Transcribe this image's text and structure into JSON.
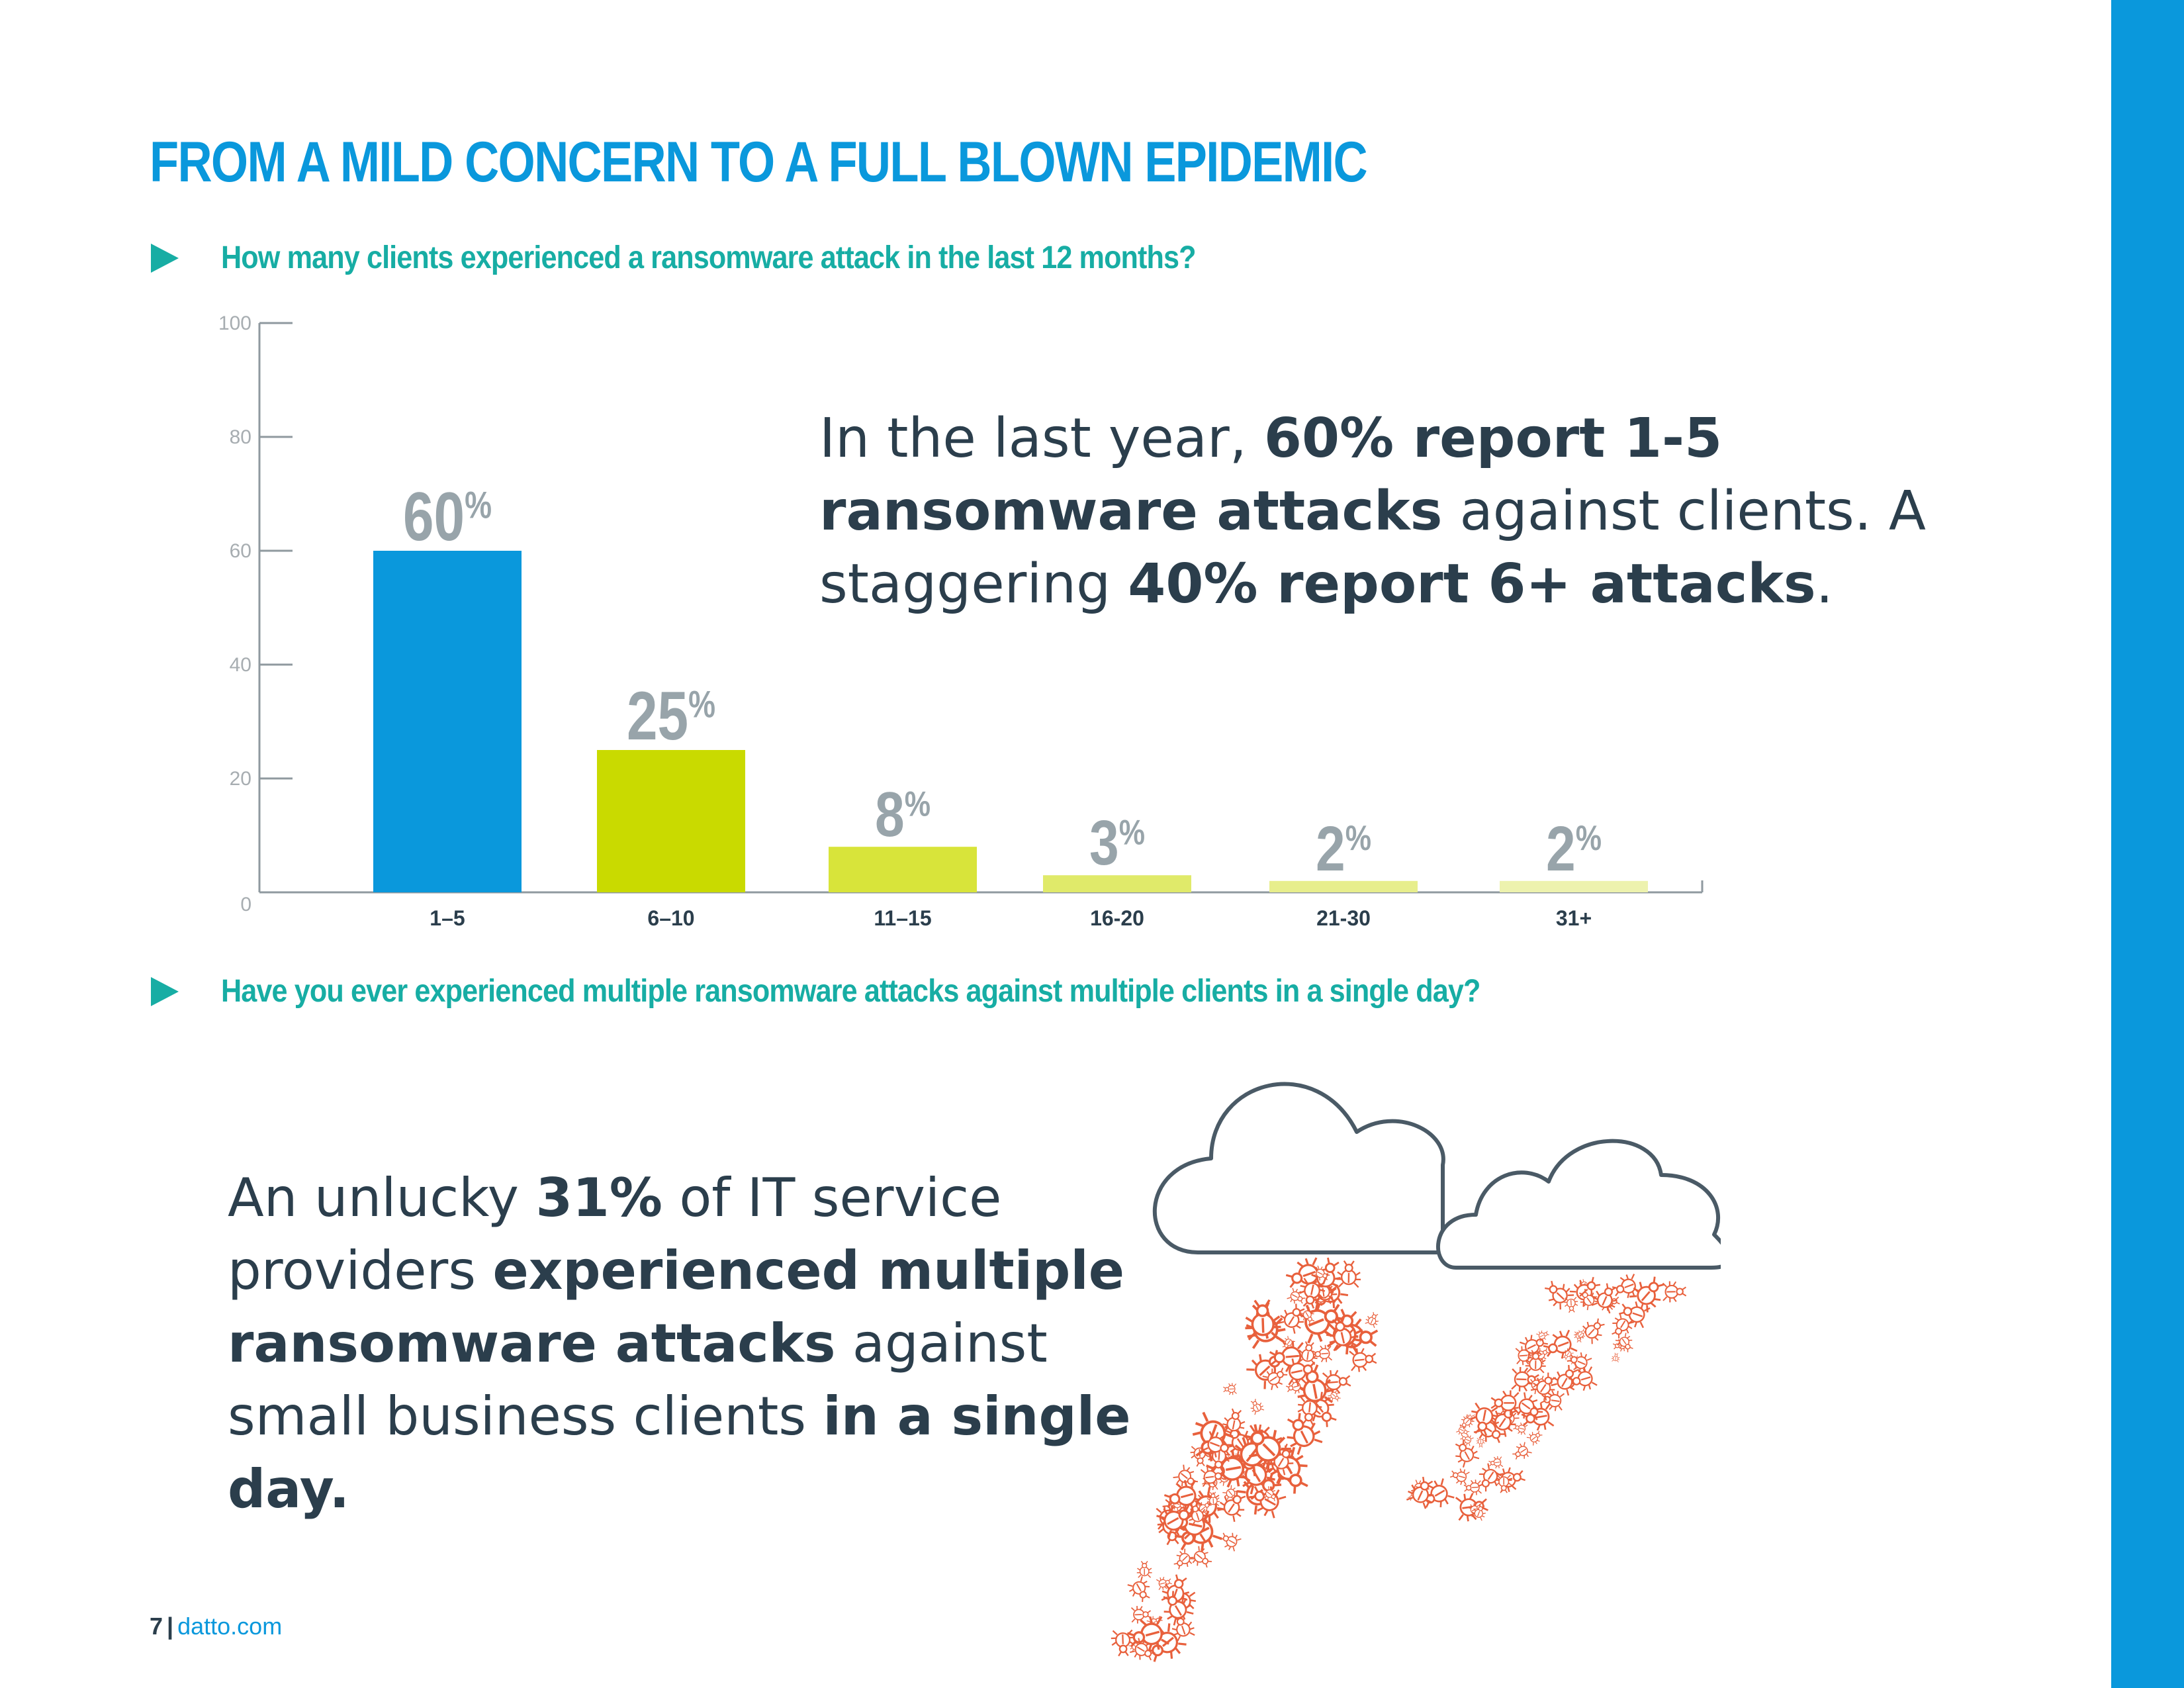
{
  "page": {
    "title": "FROM A MILD CONCERN TO A FULL BLOWN EPIDEMIC",
    "question1": "How many clients experienced a ransomware attack in the last 12 months?",
    "question2": "Have you ever experienced multiple ransomware attacks against multiple clients in a single day?",
    "callout1": {
      "t1": "In the last year, ",
      "b1": "60% report 1-5 ransomware attacks",
      "t2": " against clients. A staggering ",
      "b2": "40% report 6+ attacks",
      "t3": "."
    },
    "callout2": {
      "t1": "An unlucky ",
      "b1": "31%",
      "t2": " of IT service providers ",
      "b2": "experienced multiple ransomware attacks",
      "t3": " against small business clients ",
      "b3": "in a single day."
    },
    "footer": {
      "page_number": "7",
      "separator": "|",
      "site": "datto.com"
    },
    "colors": {
      "accent_blue": "#0a98dc",
      "teal": "#17ada4",
      "bug_orange": "#e8603c",
      "cloud_stroke": "#4a5a66"
    },
    "icons": [
      "triangle-bullet-icon",
      "cloud-icon",
      "bug-icon"
    ]
  },
  "chart_data": {
    "type": "bar",
    "categories": [
      "1–5",
      "6–10",
      "11–15",
      "16-20",
      "21-30",
      "31+"
    ],
    "values": [
      60,
      25,
      8,
      3,
      2,
      2
    ],
    "value_labels": [
      "60",
      "25",
      "8",
      "3",
      "2",
      "2"
    ],
    "value_suffix": "%",
    "yticks": [
      0,
      20,
      40,
      60,
      80,
      100
    ],
    "ylim": [
      0,
      100
    ],
    "colors": [
      "#0a98dc",
      "#c9da00",
      "#d8e43a",
      "#e0ea6a",
      "#e7ee8c",
      "#edf2ae"
    ],
    "grid": false,
    "legend": "none"
  }
}
